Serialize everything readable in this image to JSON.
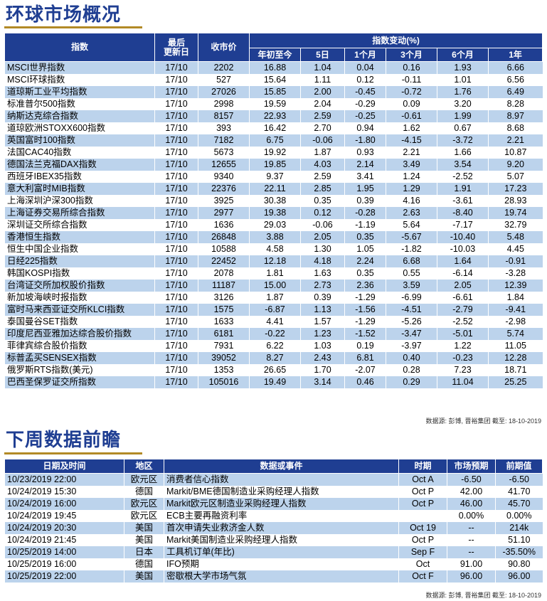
{
  "section1": {
    "title": "环球市场概况",
    "headers": {
      "index": "指数",
      "last_update": "最后\n更新日",
      "close": "收市价",
      "change_group": "指数变动(%)",
      "ytd": "年初至今",
      "d5": "5日",
      "m1": "1个月",
      "m3": "3个月",
      "m6": "6个月",
      "y1": "1年"
    },
    "rows": [
      [
        "MSCI世界指数",
        "17/10",
        "2202",
        "16.88",
        "1.04",
        "0.04",
        "0.16",
        "1.93",
        "6.66"
      ],
      [
        "MSCI环球指数",
        "17/10",
        "527",
        "15.64",
        "1.11",
        "0.12",
        "-0.11",
        "1.01",
        "6.56"
      ],
      [
        "道琼斯工业平均指数",
        "17/10",
        "27026",
        "15.85",
        "2.00",
        "-0.45",
        "-0.72",
        "1.76",
        "6.49"
      ],
      [
        "标准普尔500指数",
        "17/10",
        "2998",
        "19.59",
        "2.04",
        "-0.29",
        "0.09",
        "3.20",
        "8.28"
      ],
      [
        "纳斯达克综合指数",
        "17/10",
        "8157",
        "22.93",
        "2.59",
        "-0.25",
        "-0.61",
        "1.99",
        "8.97"
      ],
      [
        "道琼欧洲STOXX600指数",
        "17/10",
        "393",
        "16.42",
        "2.70",
        "0.94",
        "1.62",
        "0.67",
        "8.68"
      ],
      [
        "英国富时100指数",
        "17/10",
        "7182",
        "6.75",
        "-0.06",
        "-1.80",
        "-4.15",
        "-3.72",
        "2.21"
      ],
      [
        "法国CAC40指数",
        "17/10",
        "5673",
        "19.92",
        "1.87",
        "0.93",
        "2.21",
        "1.66",
        "10.87"
      ],
      [
        "德国法兰克福DAX指数",
        "17/10",
        "12655",
        "19.85",
        "4.03",
        "2.14",
        "3.49",
        "3.54",
        "9.20"
      ],
      [
        "西班牙IBEX35指数",
        "17/10",
        "9340",
        "9.37",
        "2.59",
        "3.41",
        "1.24",
        "-2.52",
        "5.07"
      ],
      [
        "意大利富时MIB指数",
        "17/10",
        "22376",
        "22.11",
        "2.85",
        "1.95",
        "1.29",
        "1.91",
        "17.23"
      ],
      [
        "上海深圳沪深300指数",
        "17/10",
        "3925",
        "30.38",
        "0.35",
        "0.39",
        "4.16",
        "-3.61",
        "28.93"
      ],
      [
        "上海证券交易所综合指数",
        "17/10",
        "2977",
        "19.38",
        "0.12",
        "-0.28",
        "2.63",
        "-8.40",
        "19.74"
      ],
      [
        "深圳证交所综合指数",
        "17/10",
        "1636",
        "29.03",
        "-0.06",
        "-1.19",
        "5.64",
        "-7.17",
        "32.79"
      ],
      [
        "香港恒生指数",
        "17/10",
        "26848",
        "3.88",
        "2.05",
        "0.35",
        "-5.67",
        "-10.40",
        "5.48"
      ],
      [
        "恒生中国企业指数",
        "17/10",
        "10588",
        "4.58",
        "1.30",
        "1.05",
        "-1.82",
        "-10.03",
        "4.45"
      ],
      [
        "日经225指数",
        "17/10",
        "22452",
        "12.18",
        "4.18",
        "2.24",
        "6.68",
        "1.64",
        "-0.91"
      ],
      [
        "韩国KOSPI指数",
        "17/10",
        "2078",
        "1.81",
        "1.63",
        "0.35",
        "0.55",
        "-6.14",
        "-3.28"
      ],
      [
        "台湾证交所加权股价指数",
        "17/10",
        "11187",
        "15.00",
        "2.73",
        "2.36",
        "3.59",
        "2.05",
        "12.39"
      ],
      [
        "新加坡海峡时报指数",
        "17/10",
        "3126",
        "1.87",
        "0.39",
        "-1.29",
        "-6.99",
        "-6.61",
        "1.84"
      ],
      [
        "富时马来西亚证交所KLCI指数",
        "17/10",
        "1575",
        "-6.87",
        "1.13",
        "-1.56",
        "-4.51",
        "-2.79",
        "-9.41"
      ],
      [
        "泰国曼谷SET指数",
        "17/10",
        "1633",
        "4.41",
        "1.57",
        "-1.29",
        "-5.26",
        "-2.52",
        "-2.98"
      ],
      [
        "印度尼西亚雅加达综合股价指数",
        "17/10",
        "6181",
        "-0.22",
        "1.23",
        "-1.52",
        "-3.47",
        "-5.01",
        "5.74"
      ],
      [
        "菲律宾综合股价指数",
        "17/10",
        "7931",
        "6.22",
        "1.03",
        "0.19",
        "-3.97",
        "1.22",
        "11.05"
      ],
      [
        "标普孟买SENSEX指数",
        "17/10",
        "39052",
        "8.27",
        "2.43",
        "6.81",
        "0.40",
        "-0.23",
        "12.28"
      ],
      [
        "俄罗斯RTS指数(美元)",
        "17/10",
        "1353",
        "26.65",
        "1.70",
        "-2.07",
        "0.28",
        "7.23",
        "18.71"
      ],
      [
        "巴西圣保罗证交所指数",
        "17/10",
        "105016",
        "19.49",
        "3.14",
        "0.46",
        "0.29",
        "11.04",
        "25.25"
      ]
    ],
    "source": "数据源: 彭博, 晋裕集团 截至: 18-10-2019"
  },
  "section2": {
    "title": "下周数据前瞻",
    "headers": {
      "datetime": "日期及时间",
      "region": "地区",
      "event": "数据或事件",
      "period": "时期",
      "forecast": "市场预期",
      "previous": "前期值"
    },
    "rows": [
      [
        "10/23/2019 22:00",
        "欧元区",
        "消费者信心指数",
        "Oct A",
        "-6.50",
        "-6.50"
      ],
      [
        "10/24/2019 15:30",
        "德国",
        "Markit/BME德国制造业采购经理人指数",
        "Oct P",
        "42.00",
        "41.70"
      ],
      [
        "10/24/2019 16:00",
        "欧元区",
        "Markit欧元区制造业采购经理人指数",
        "Oct P",
        "46.00",
        "45.70"
      ],
      [
        "10/24/2019 19:45",
        "欧元区",
        "ECB主要再融资利率",
        "",
        "0.00%",
        "0.00%"
      ],
      [
        "10/24/2019 20:30",
        "美国",
        "首次申请失业救济金人数",
        "Oct 19",
        "--",
        "214k"
      ],
      [
        "10/24/2019 21:45",
        "美国",
        "Markit美国制造业采购经理人指数",
        "Oct P",
        "--",
        "51.10"
      ],
      [
        "10/25/2019 14:00",
        "日本",
        "工具机订单(年比)",
        "Sep F",
        "--",
        "-35.50%"
      ],
      [
        "10/25/2019 16:00",
        "德国",
        "IFO预期",
        "Oct",
        "91.00",
        "90.80"
      ],
      [
        "10/25/2019 22:00",
        "美国",
        "密歇根大学市场气氛",
        "Oct F",
        "96.00",
        "96.00"
      ]
    ],
    "source": "数据源: 彭博, 晋裕集团 截至: 18-10-2019"
  }
}
